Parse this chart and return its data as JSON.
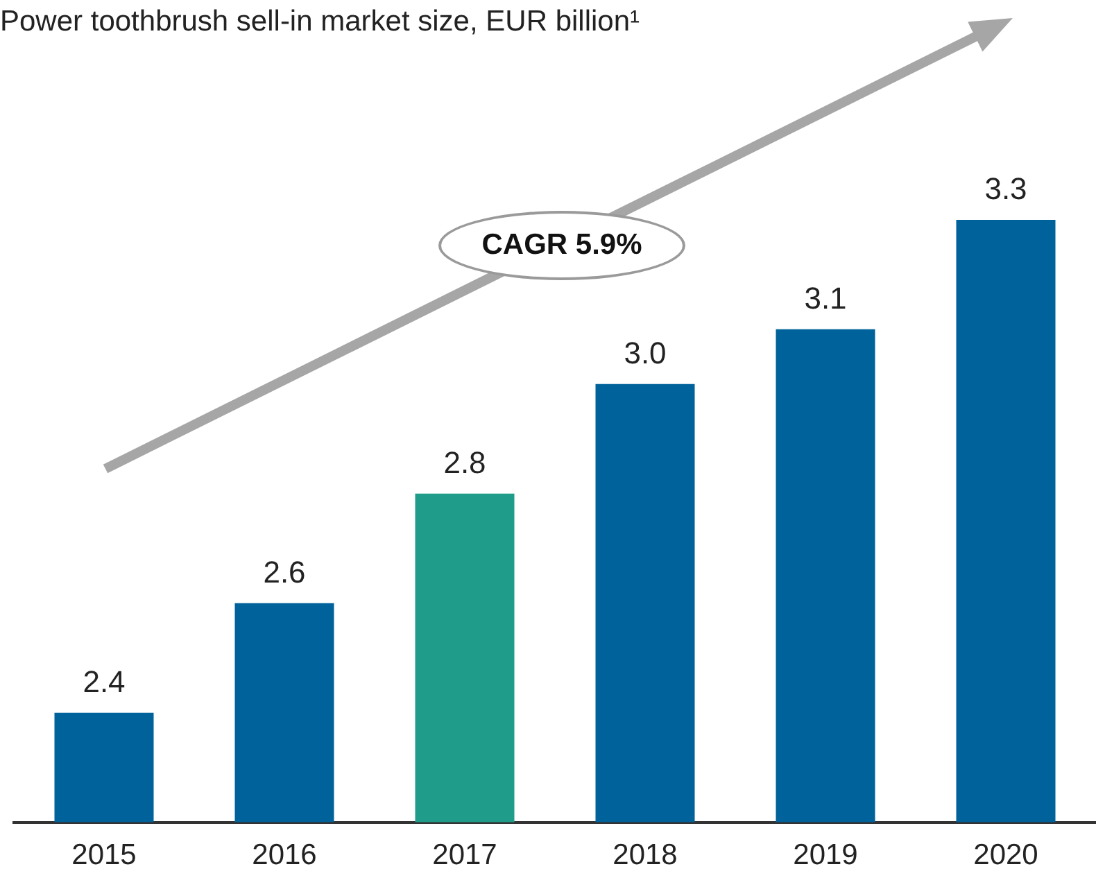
{
  "chart_data": {
    "type": "bar",
    "title": "Power toothbrush sell-in market size, EUR billion¹",
    "categories": [
      "2015",
      "2016",
      "2017",
      "2018",
      "2019",
      "2020"
    ],
    "values": [
      2.4,
      2.6,
      2.8,
      3.0,
      3.1,
      3.3
    ],
    "colors": [
      "#00629b",
      "#00629b",
      "#1f9d8a",
      "#00629b",
      "#00629b",
      "#00629b"
    ],
    "value_labels": [
      "2.4",
      "2.6",
      "2.8",
      "3.0",
      "3.1",
      "3.3"
    ],
    "tick_labels": "x",
    "grid": false,
    "legend": false,
    "annotations": [
      "CAGR 5.9%"
    ]
  }
}
